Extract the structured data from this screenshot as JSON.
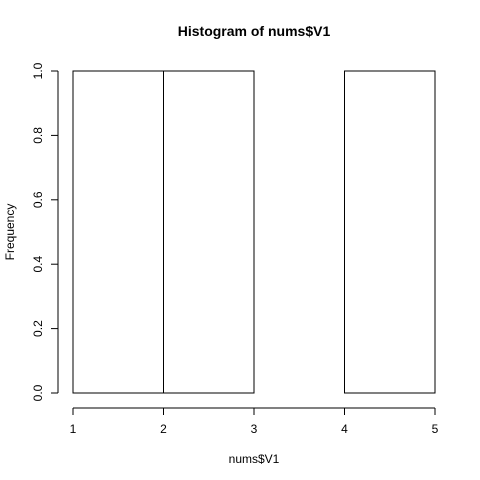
{
  "chart_data": {
    "type": "bar",
    "title": "Histogram of nums$V1",
    "xlabel": "nums$V1",
    "ylabel": "Frequency",
    "bins": [
      {
        "start": 1,
        "end": 2,
        "count": 1
      },
      {
        "start": 2,
        "end": 3,
        "count": 1
      },
      {
        "start": 3,
        "end": 4,
        "count": 0
      },
      {
        "start": 4,
        "end": 5,
        "count": 1
      }
    ],
    "xlim": [
      1,
      5
    ],
    "ylim": [
      0,
      1
    ],
    "x_ticks": [
      1,
      2,
      3,
      4,
      5
    ],
    "y_ticks": [
      0.0,
      0.2,
      0.4,
      0.6,
      0.8,
      1.0
    ],
    "x_tick_labels": [
      "1",
      "2",
      "3",
      "4",
      "5"
    ],
    "y_tick_labels": [
      "0.0",
      "0.2",
      "0.4",
      "0.6",
      "0.8",
      "1.0"
    ],
    "grid": false,
    "colors": {
      "bar_fill": "#ffffff",
      "bar_stroke": "#000000"
    }
  }
}
